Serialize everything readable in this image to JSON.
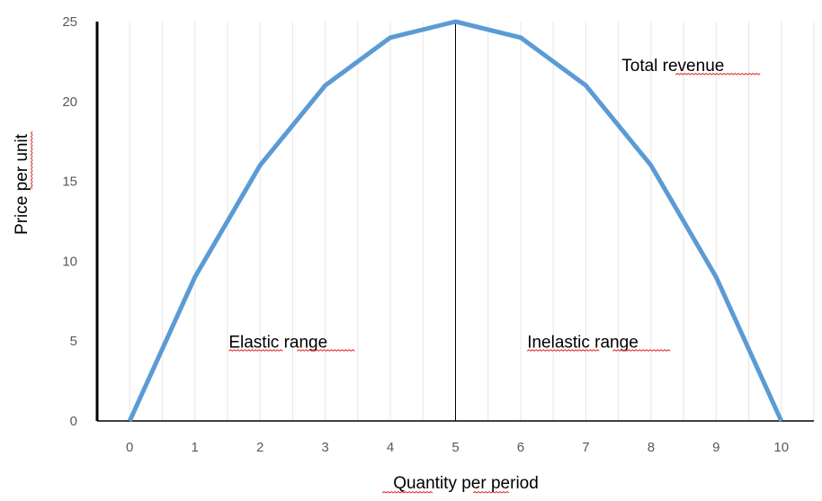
{
  "chart_data": {
    "type": "line",
    "title": "",
    "xlabel": "Quantity per period",
    "ylabel": "Price per unit",
    "x": [
      0,
      1,
      2,
      3,
      4,
      5,
      6,
      7,
      8,
      9,
      10
    ],
    "series": [
      {
        "values": [
          0,
          9,
          16,
          21,
          24,
          25,
          24,
          21,
          16,
          9,
          0
        ],
        "color": "#5B9BD5"
      }
    ],
    "xlim": [
      -0.5,
      10.5
    ],
    "ylim": [
      0,
      25
    ],
    "x_ticks": [
      "0",
      "1",
      "2",
      "3",
      "4",
      "5",
      "6",
      "7",
      "8",
      "9",
      "10"
    ],
    "y_ticks": [
      "0",
      "5",
      "10",
      "15",
      "20",
      "25"
    ],
    "grid": true,
    "legend": "none",
    "reference_line": {
      "x": 5,
      "color": "#000000"
    },
    "annotations": [
      {
        "text": "Total revenue",
        "x": 7.55,
        "y": 21.9
      },
      {
        "text": "Elastic range",
        "x": 1.52,
        "y": 4.6
      },
      {
        "text": "Inelastic range",
        "x": 6.1,
        "y": 4.6
      }
    ]
  }
}
